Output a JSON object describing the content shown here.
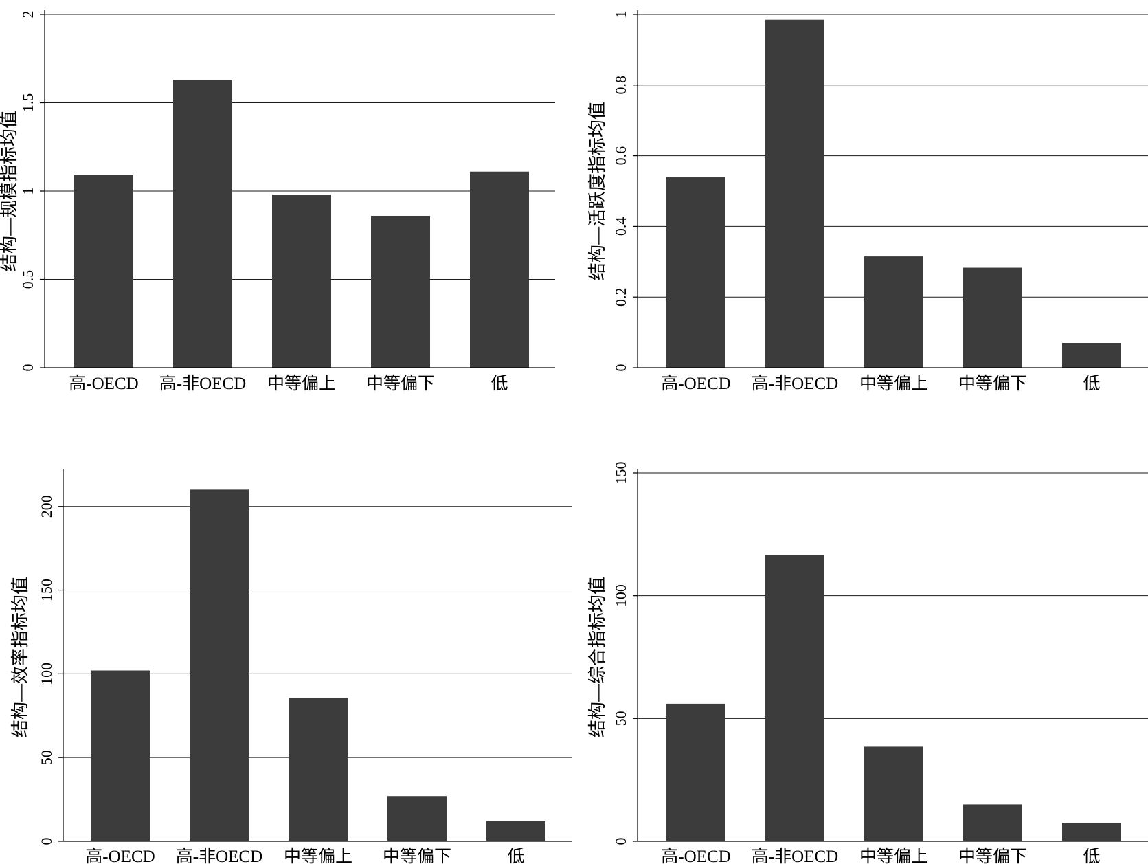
{
  "chart_data": [
    {
      "type": "bar",
      "ylabel": "结构—规模指标均值",
      "categories": [
        "高-OECD",
        "高-非OECD",
        "中等偏上",
        "中等偏下",
        "低"
      ],
      "values": [
        1.09,
        1.63,
        0.98,
        0.86,
        1.11
      ],
      "ylim": [
        0,
        2
      ],
      "yticks": [
        "0",
        "0.5",
        "1",
        "1.5",
        "2"
      ],
      "ytick_values": [
        0,
        0.5,
        1,
        1.5,
        2
      ],
      "grid": true,
      "bar_color": "#3c3c3c"
    },
    {
      "type": "bar",
      "ylabel": "结构—活跃度指标均值",
      "categories": [
        "高-OECD",
        "高-非OECD",
        "中等偏上",
        "中等偏下",
        "低"
      ],
      "values": [
        0.54,
        0.985,
        0.315,
        0.283,
        0.07
      ],
      "ylim": [
        0,
        1
      ],
      "yticks": [
        "0",
        "0.2",
        "0.4",
        "0.6",
        "0.8",
        "1"
      ],
      "ytick_values": [
        0,
        0.2,
        0.4,
        0.6,
        0.8,
        1
      ],
      "grid": true,
      "bar_color": "#3c3c3c"
    },
    {
      "type": "bar",
      "ylabel": "结构—效率指标均值",
      "categories": [
        "高-OECD",
        "高-非OECD",
        "中等偏上",
        "中等偏下",
        "低"
      ],
      "values": [
        102,
        210,
        85.5,
        27,
        12
      ],
      "ylim": [
        0,
        220
      ],
      "yticks": [
        "0",
        "50",
        "100",
        "150",
        "200"
      ],
      "ytick_values": [
        0,
        50,
        100,
        150,
        200
      ],
      "grid": true,
      "bar_color": "#3c3c3c"
    },
    {
      "type": "bar",
      "ylabel": "结构—综合指标均值",
      "categories": [
        "高-OECD",
        "高-非OECD",
        "中等偏上",
        "中等偏下",
        "低"
      ],
      "values": [
        56,
        116.5,
        38.5,
        15,
        7.5
      ],
      "ylim": [
        0,
        150
      ],
      "yticks": [
        "0",
        "50",
        "100",
        "150"
      ],
      "ytick_values": [
        0,
        50,
        100,
        150
      ],
      "grid": true,
      "bar_color": "#3c3c3c"
    }
  ]
}
